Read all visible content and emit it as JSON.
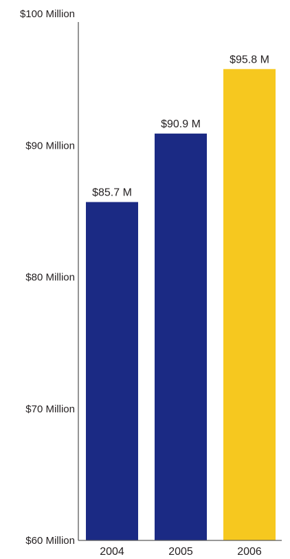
{
  "chart_data": {
    "type": "bar",
    "title": "",
    "xlabel": "",
    "ylabel": "",
    "categories": [
      "2004",
      "2005",
      "2006"
    ],
    "values": [
      85.7,
      90.9,
      95.8
    ],
    "value_labels": [
      "$85.7 M",
      "$90.9 M",
      "$95.8 M"
    ],
    "bar_colors": [
      "#1b2a84",
      "#1b2a84",
      "#f6c81f"
    ],
    "ylim": [
      60,
      100
    ],
    "yticks": [
      60,
      70,
      80,
      90,
      100
    ],
    "ytick_labels": [
      "$60 Million",
      "$70 Million",
      "$80 Million",
      "$90 Million",
      "$100 Million"
    ],
    "grid": false,
    "legend": "none"
  }
}
